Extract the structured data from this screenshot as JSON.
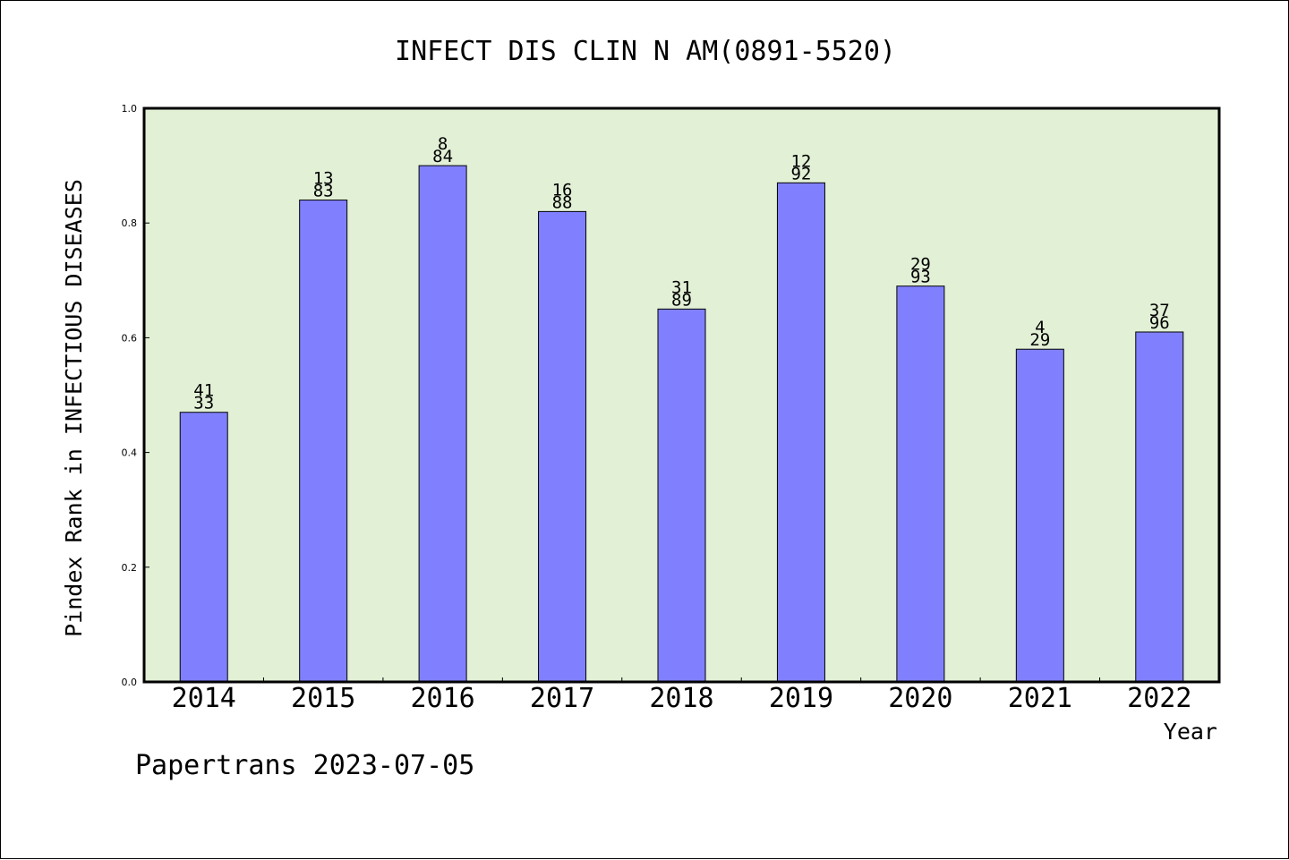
{
  "colors": {
    "plot_background": "#e2f0d6",
    "bar_fill": "#8080ff",
    "axis": "#000000",
    "text": "#000000"
  },
  "chart_data": {
    "type": "bar",
    "title": "INFECT DIS CLIN N AM(0891-5520)",
    "xlabel": "Year",
    "ylabel": "Pindex Rank in INFECTIOUS DISEASES",
    "ylim": [
      0,
      1.0
    ],
    "yticks": [
      "0.0",
      "0.2",
      "0.4",
      "0.6",
      "0.8",
      "1.0"
    ],
    "grid": false,
    "legend": "none",
    "categories": [
      "2014",
      "2015",
      "2016",
      "2017",
      "2018",
      "2019",
      "2020",
      "2021",
      "2022"
    ],
    "values": [
      0.47,
      0.84,
      0.9,
      0.82,
      0.65,
      0.87,
      0.69,
      0.58,
      0.61
    ],
    "labels_top": [
      "41",
      "13",
      "8",
      "16",
      "31",
      "12",
      "29",
      "4",
      "37"
    ],
    "labels_bottom": [
      "33",
      "83",
      "84",
      "88",
      "89",
      "92",
      "93",
      "29",
      "96"
    ]
  },
  "footer": {
    "credit": "Papertrans 2023-07-05"
  }
}
